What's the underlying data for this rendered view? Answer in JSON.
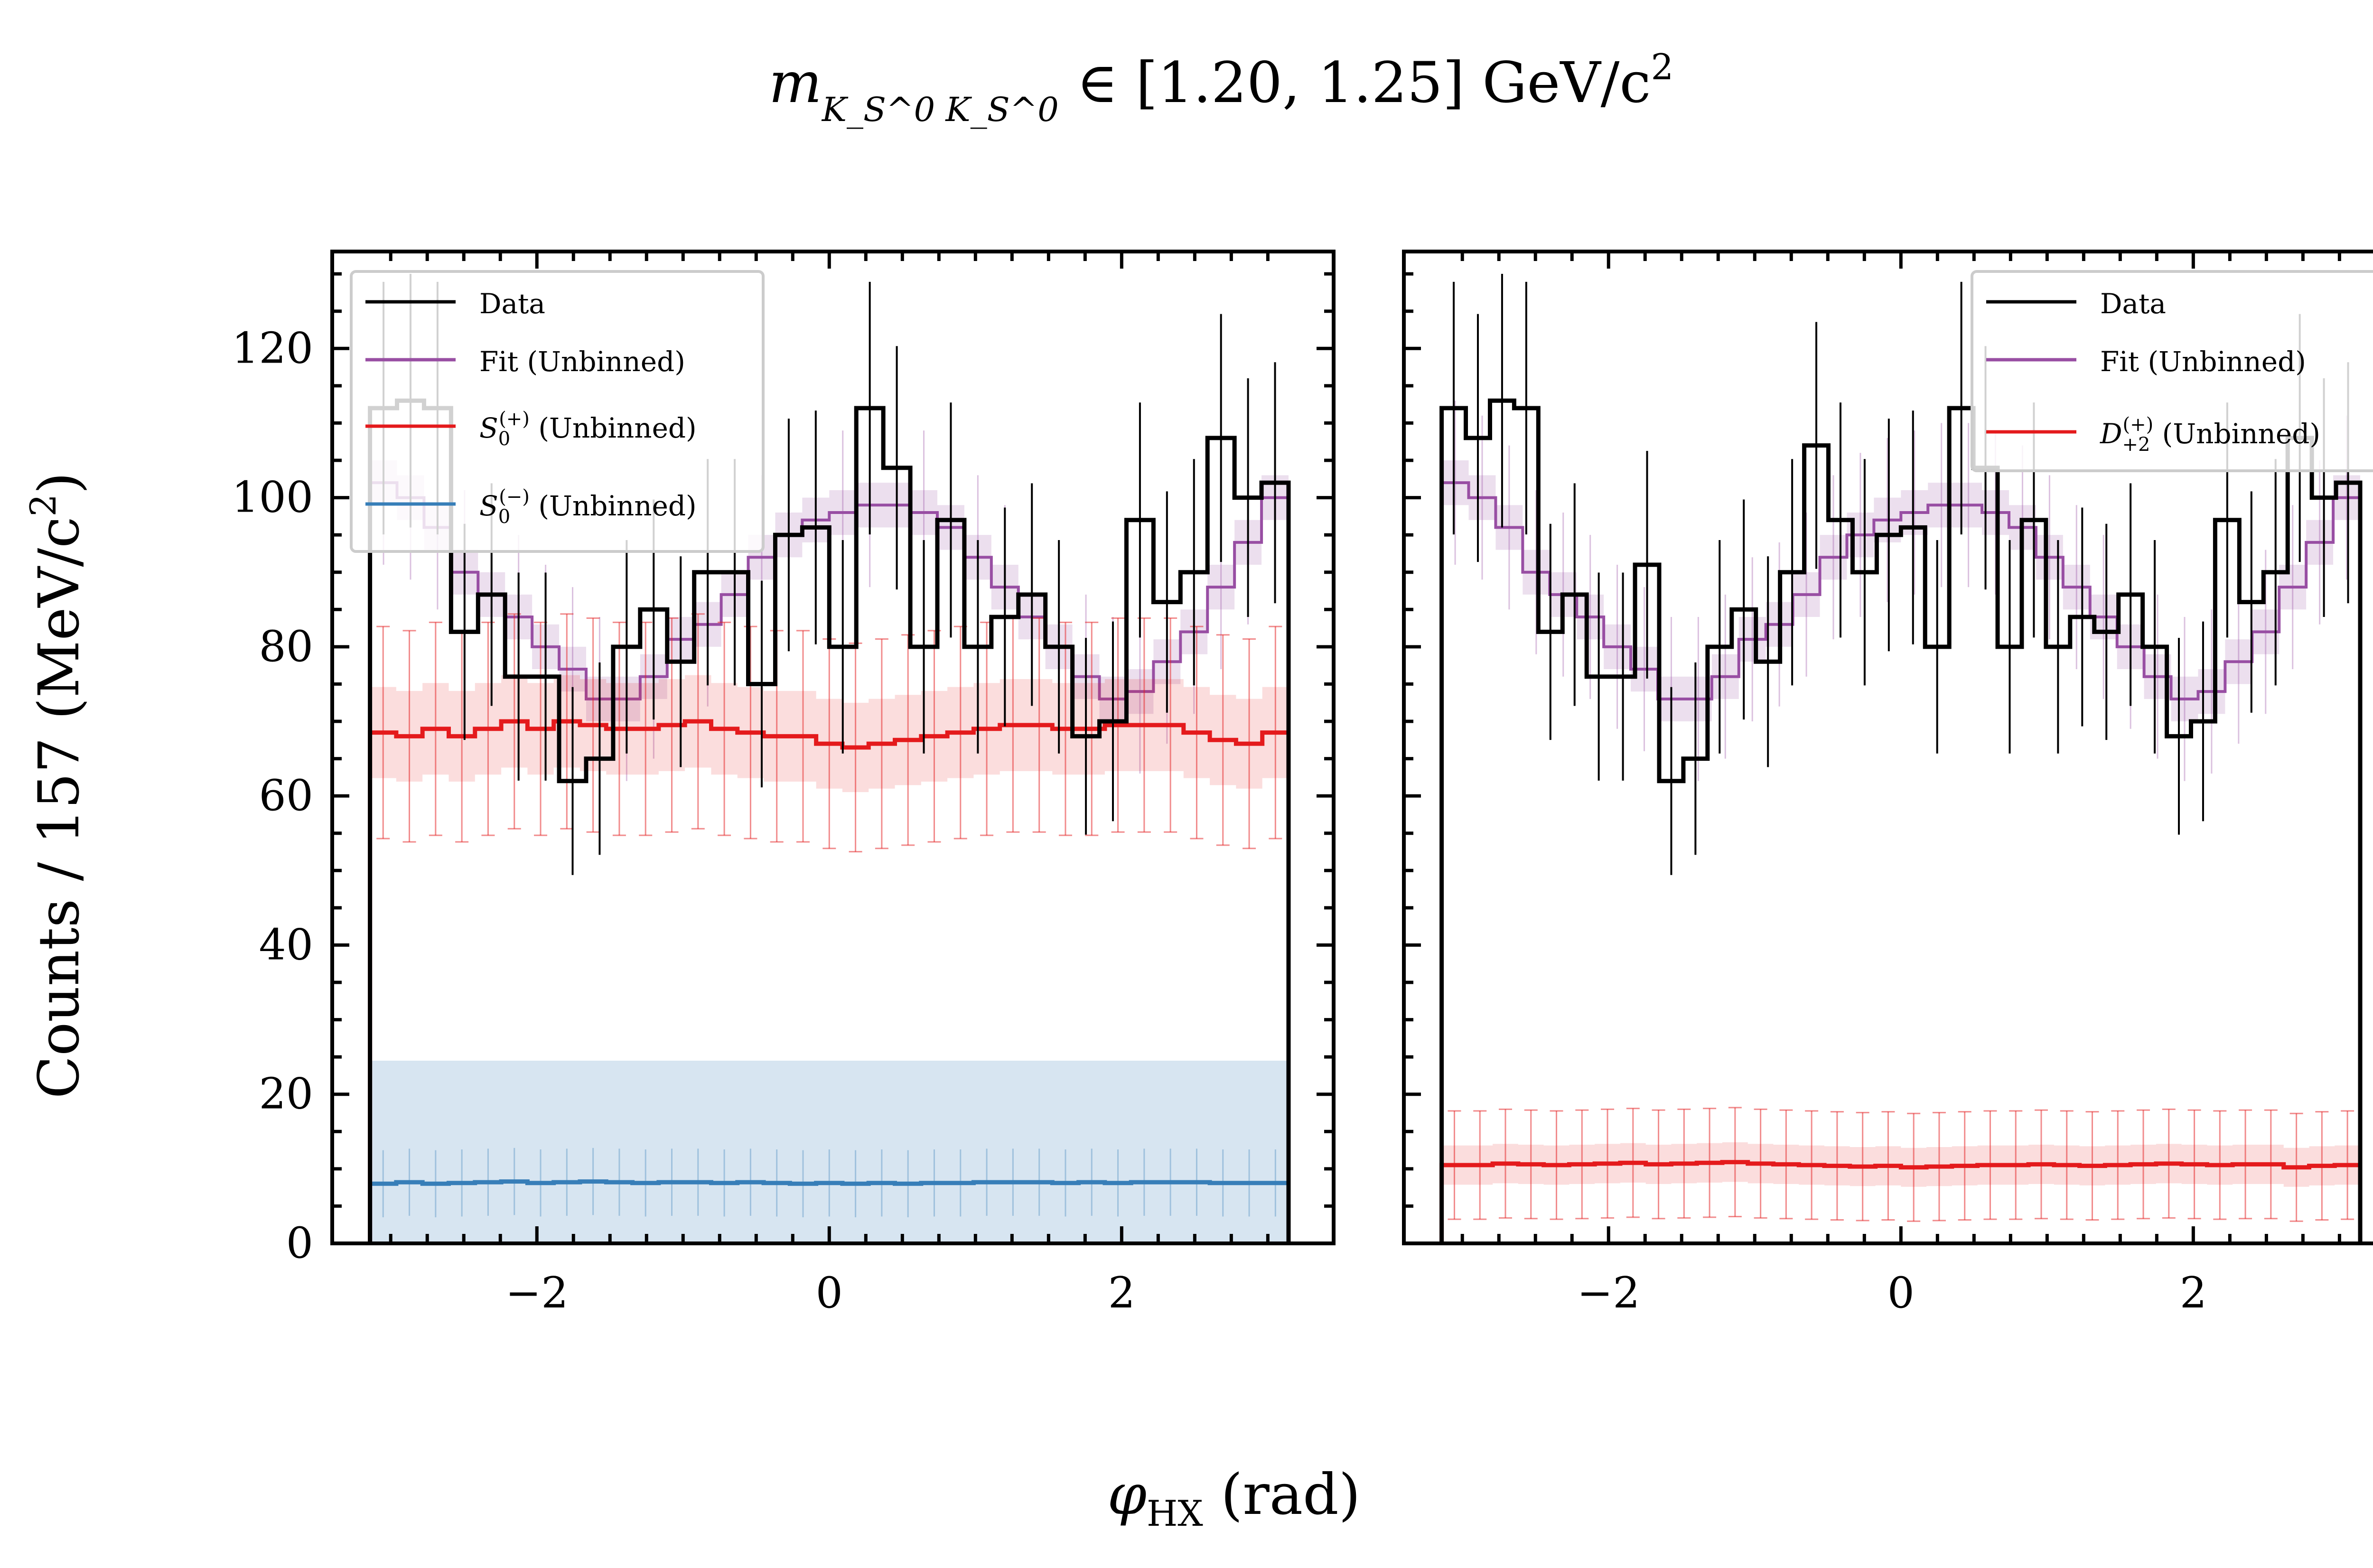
{
  "figure": {
    "title_var": "m",
    "title_sub": "K_S^0 K_S^0",
    "title_rest": " ∈ [1.20, 1.25] GeV/c",
    "title_exp": "2",
    "ylabel_main": "Counts / 157 (MeV/c",
    "ylabel_exp": "2",
    "ylabel_close": ")",
    "xlabel_var": "φ",
    "xlabel_sub": "HX",
    "xlabel_rest": " (rad)"
  },
  "colors": {
    "data": "#000000",
    "fit": "#984ea3",
    "s0_plus": "#e41a1c",
    "s0_minus": "#377eb8",
    "d_plus2": "#e41a1c"
  },
  "chart_data": [
    {
      "type": "line",
      "panel": "left",
      "xlim": [
        -3.4,
        3.45
      ],
      "ylim": [
        0,
        133
      ],
      "xticks": [
        -2,
        0,
        2
      ],
      "xtick_labels": [
        "−2",
        "0",
        "2"
      ],
      "yticks": [
        0,
        20,
        40,
        60,
        80,
        100,
        120
      ],
      "ytick_labels": [
        "0",
        "20",
        "40",
        "60",
        "80",
        "100",
        "120"
      ],
      "x_range": [
        -3.1416,
        3.1416
      ],
      "legend_position": "upper left",
      "series": [
        {
          "key": "data",
          "name": "Data",
          "color": "#000000",
          "style": "step",
          "values": [
            112,
            113,
            112,
            82,
            87,
            76,
            76,
            62,
            65,
            80,
            85,
            78,
            90,
            90,
            75,
            95,
            96,
            80,
            112,
            104,
            80,
            97,
            80,
            84,
            87,
            80,
            68,
            70,
            97,
            86,
            90,
            108,
            100,
            102
          ]
        },
        {
          "key": "fit",
          "name": "Fit (Unbinned)",
          "color": "#984ea3",
          "style": "step_band",
          "values": [
            102,
            100,
            96,
            90,
            87,
            84,
            80,
            77,
            73,
            73,
            76,
            81,
            83,
            87,
            92,
            95,
            97,
            98,
            99,
            99,
            98,
            96,
            92,
            88,
            84,
            80,
            76,
            73,
            74,
            78,
            82,
            88,
            94,
            100
          ]
        },
        {
          "key": "s0_plus",
          "name": "S_0^(+) (Unbinned)",
          "color": "#e41a1c",
          "style": "step_errorbar",
          "values": [
            68.5,
            68,
            69,
            68,
            69,
            70,
            69,
            70,
            69.5,
            69,
            69,
            69.5,
            70,
            69,
            68.5,
            68,
            68,
            67,
            66.5,
            67,
            67.5,
            68,
            68.5,
            69,
            69.5,
            69.5,
            69,
            69,
            69.5,
            69.5,
            69.5,
            68.5,
            67.5,
            67,
            68.5
          ]
        },
        {
          "key": "s0_minus",
          "name": "S_0^(−) (Unbinned)",
          "color": "#377eb8",
          "style": "step_band",
          "values": [
            8,
            8.2,
            8,
            8.1,
            8.2,
            8.3,
            8.1,
            8.2,
            8.3,
            8.2,
            8.1,
            8.2,
            8.2,
            8.1,
            8.2,
            8.1,
            8,
            8.1,
            8,
            8.1,
            8,
            8.1,
            8.1,
            8.2,
            8.2,
            8.2,
            8.1,
            8.2,
            8.1,
            8.2,
            8.2,
            8.2,
            8.1,
            8.1,
            8.1
          ]
        }
      ]
    },
    {
      "type": "line",
      "panel": "right",
      "xlim": [
        -3.4,
        3.45
      ],
      "ylim": [
        0,
        133
      ],
      "xticks": [
        -2,
        0,
        2
      ],
      "xtick_labels": [
        "−2",
        "0",
        "2"
      ],
      "yticks": [
        0,
        20,
        40,
        60,
        80,
        100,
        120
      ],
      "ytick_labels": [],
      "x_range": [
        -3.1416,
        3.1416
      ],
      "legend_position": "upper right",
      "series": [
        {
          "key": "data",
          "name": "Data",
          "color": "#000000",
          "style": "step",
          "values": [
            112,
            108,
            113,
            112,
            82,
            87,
            76,
            76,
            91,
            62,
            65,
            80,
            85,
            78,
            90,
            107,
            97,
            90,
            95,
            96,
            80,
            112,
            104,
            80,
            97,
            80,
            84,
            82,
            87,
            80,
            68,
            70,
            97,
            86,
            90,
            108,
            100,
            102
          ]
        },
        {
          "key": "fit",
          "name": "Fit (Unbinned)",
          "color": "#984ea3",
          "style": "step_band",
          "values": [
            102,
            100,
            96,
            90,
            87,
            84,
            80,
            77,
            73,
            73,
            76,
            81,
            83,
            87,
            92,
            95,
            97,
            98,
            99,
            99,
            98,
            96,
            92,
            88,
            84,
            80,
            76,
            73,
            74,
            78,
            82,
            88,
            94,
            100
          ]
        },
        {
          "key": "d_plus2",
          "name": "D_+2^(+) (Unbinned)",
          "color": "#e41a1c",
          "style": "step_errorbar",
          "values": [
            10.5,
            10.5,
            10.7,
            10.6,
            10.5,
            10.6,
            10.7,
            10.8,
            10.6,
            10.7,
            10.8,
            10.9,
            10.7,
            10.6,
            10.5,
            10.4,
            10.3,
            10.4,
            10.2,
            10.3,
            10.4,
            10.5,
            10.5,
            10.6,
            10.5,
            10.4,
            10.5,
            10.6,
            10.7,
            10.6,
            10.5,
            10.6,
            10.6,
            10.2,
            10.4,
            10.5
          ]
        }
      ]
    }
  ]
}
